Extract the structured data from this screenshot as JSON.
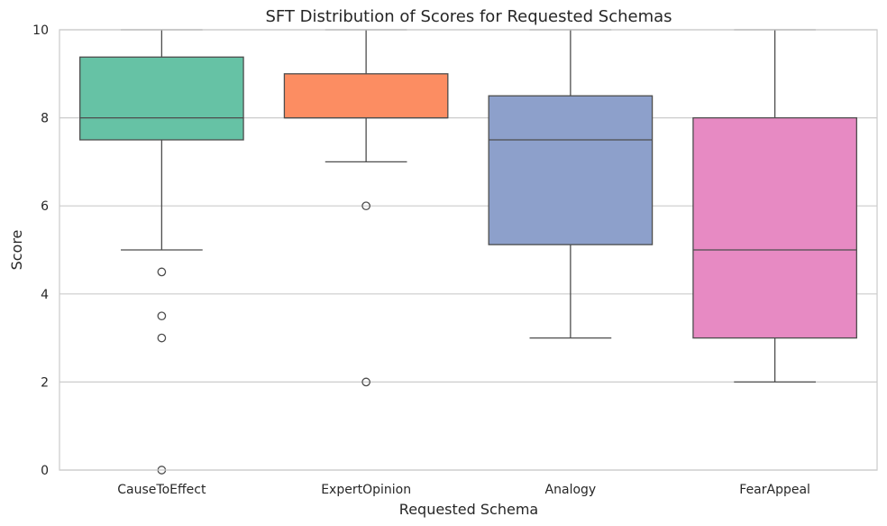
{
  "chart_data": {
    "type": "box",
    "title": "SFT Distribution of Scores for Requested Schemas",
    "xlabel": "Requested Schema",
    "ylabel": "Score",
    "ylim": [
      0,
      10
    ],
    "yticks": [
      "0",
      "2",
      "4",
      "6",
      "8",
      "10"
    ],
    "grid": true,
    "categories": [
      "CauseToEffect",
      "ExpertOpinion",
      "Analogy",
      "FearAppeal"
    ],
    "boxes": [
      {
        "category": "CauseToEffect",
        "whisker_low": 5,
        "q1": 7.5,
        "median": 8,
        "q3": 9.38,
        "whisker_high": 10,
        "outliers": [
          4.5,
          3.5,
          3,
          0
        ],
        "color": "#66c2a5"
      },
      {
        "category": "ExpertOpinion",
        "whisker_low": 7,
        "q1": 8,
        "median": 8,
        "q3": 9,
        "whisker_high": 10,
        "outliers": [
          6,
          2
        ],
        "color": "#fc8d62"
      },
      {
        "category": "Analogy",
        "whisker_low": 3,
        "q1": 5.12,
        "median": 7.5,
        "q3": 8.5,
        "whisker_high": 10,
        "outliers": [],
        "color": "#8da0cb"
      },
      {
        "category": "FearAppeal",
        "whisker_low": 2,
        "q1": 3,
        "median": 5,
        "q3": 8,
        "whisker_high": 10,
        "outliers": [],
        "color": "#e78ac3"
      }
    ]
  }
}
